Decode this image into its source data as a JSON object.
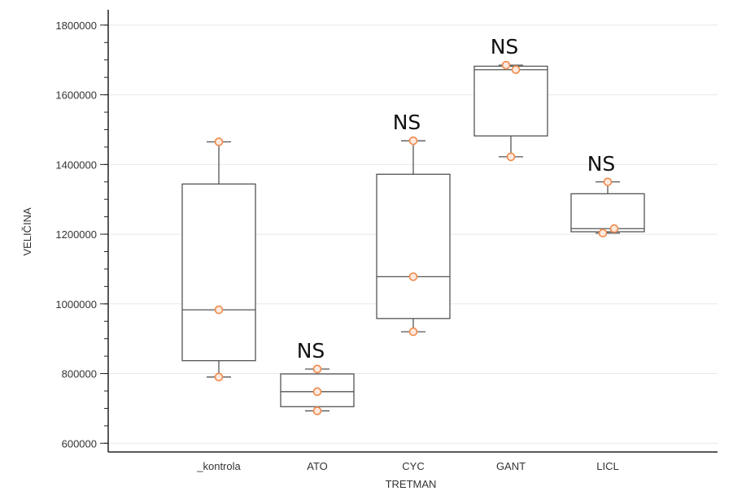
{
  "chart_data": {
    "type": "box",
    "xlabel": "TRETMAN",
    "ylabel": "VELIČINA",
    "ylim": [
      575000,
      1830000
    ],
    "yticks": [
      600000,
      800000,
      1000000,
      1200000,
      1400000,
      1600000,
      1800000
    ],
    "ytick_labels": [
      "600000",
      "800000",
      "1000000",
      "1200000",
      "1400000",
      "1600000",
      "1800000"
    ],
    "grid": true,
    "categories": [
      "_kontrola",
      "ATO",
      "CYC",
      "GANT",
      "LICL"
    ],
    "boxes": [
      {
        "category": "_kontrola",
        "whisker_low": 790000,
        "q1": 837000,
        "median": 983000,
        "q3": 1344000,
        "whisker_high": 1465000,
        "annotation": ""
      },
      {
        "category": "ATO",
        "whisker_low": 693000,
        "q1": 705000,
        "median": 748000,
        "q3": 799000,
        "whisker_high": 813000,
        "annotation": "NS"
      },
      {
        "category": "CYC",
        "whisker_low": 920000,
        "q1": 958000,
        "median": 1078000,
        "q3": 1372000,
        "whisker_high": 1468000,
        "annotation": "NS"
      },
      {
        "category": "GANT",
        "whisker_low": 1422000,
        "q1": 1482000,
        "median": 1672000,
        "q3": 1682000,
        "whisker_high": 1685000,
        "annotation": "NS"
      },
      {
        "category": "LICL",
        "whisker_low": 1203000,
        "q1": 1207000,
        "median": 1216000,
        "q3": 1316000,
        "whisker_high": 1350000,
        "annotation": "NS"
      }
    ],
    "points": [
      {
        "category": "_kontrola",
        "values": [
          1465000,
          983000,
          790000
        ]
      },
      {
        "category": "ATO",
        "values": [
          813000,
          748000,
          693000
        ]
      },
      {
        "category": "CYC",
        "values": [
          1468000,
          1078000,
          920000
        ]
      },
      {
        "category": "GANT",
        "values": [
          1685000,
          1672000,
          1422000
        ]
      },
      {
        "category": "LICL",
        "values": [
          1350000,
          1216000,
          1203000
        ]
      }
    ],
    "colors": {
      "box": "#555555",
      "point_edge": "#f08a4b",
      "point_fill": "#fde9dd",
      "grid": "#e8e8e8",
      "axis": "#222222"
    }
  }
}
